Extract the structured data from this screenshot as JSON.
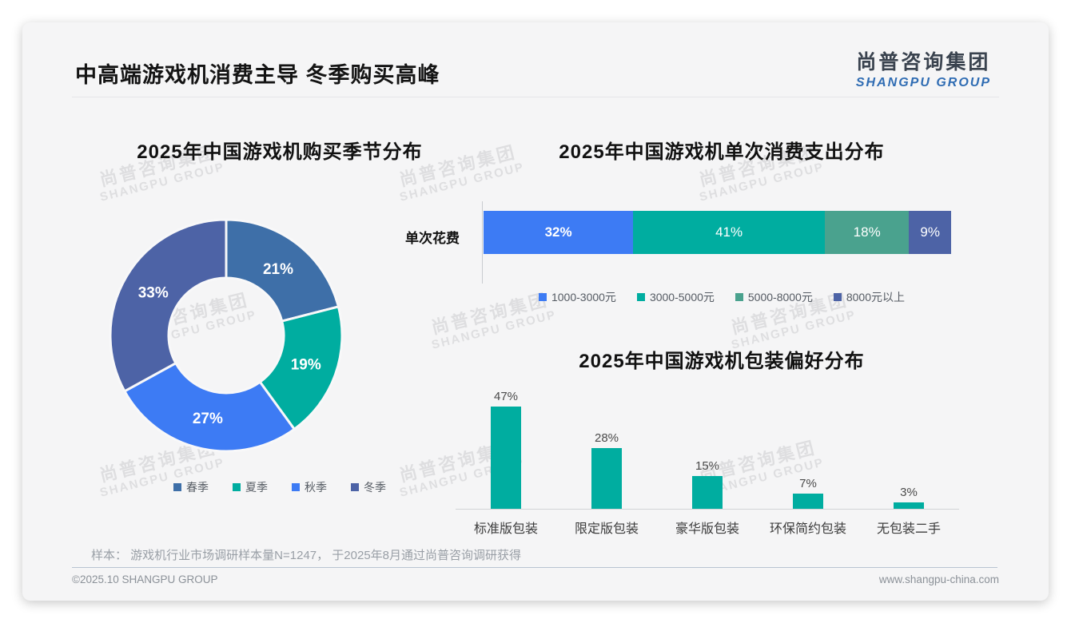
{
  "page": {
    "title": "中高端游戏机消费主导 冬季购买高峰",
    "logo": {
      "cn": "尚普咨询集团",
      "en": "SHANGPU GROUP"
    },
    "watermark": {
      "cn": "尚普咨询集团",
      "en": "SHANGPU GROUP"
    },
    "footnote": "样本： 游戏机行业市场调研样本量N=1247， 于2025年8月通过尚普咨询调研获得",
    "footer": {
      "left": "©2025.10 SHANGPU GROUP",
      "right": "www.shangpu-china.com"
    }
  },
  "chart_data": [
    {
      "type": "pie",
      "variant": "donut",
      "title": "2025年中国游戏机购买季节分布",
      "labels": [
        "春季",
        "夏季",
        "秋季",
        "冬季"
      ],
      "values": [
        21,
        19,
        27,
        33
      ],
      "value_suffix": "%",
      "colors": [
        "#3e6fa8",
        "#00ada0",
        "#3d7bf4",
        "#4d63a6"
      ],
      "start_angle": "top",
      "direction": "clockwise",
      "legend_position": "bottom"
    },
    {
      "type": "bar",
      "variant": "stacked-horizontal",
      "title": "2025年中国游戏机单次消费支出分布",
      "row_label": "单次花费",
      "categories": [
        "1000-3000元",
        "3000-5000元",
        "5000-8000元",
        "8000元以上"
      ],
      "values": [
        32,
        41,
        18,
        9
      ],
      "value_suffix": "%",
      "colors": [
        "#3d7bf4",
        "#00ada0",
        "#4aa28e",
        "#4d63a6"
      ],
      "legend_position": "bottom",
      "xlim": [
        0,
        100
      ]
    },
    {
      "type": "bar",
      "variant": "vertical",
      "title": "2025年中国游戏机包装偏好分布",
      "categories": [
        "标准版包装",
        "限定版包装",
        "豪华版包装",
        "环保简约包装",
        "无包装二手"
      ],
      "values": [
        47,
        28,
        15,
        7,
        3
      ],
      "value_suffix": "%",
      "bar_color": "#00ada0",
      "grid": false,
      "ylim": [
        0,
        50
      ]
    }
  ]
}
